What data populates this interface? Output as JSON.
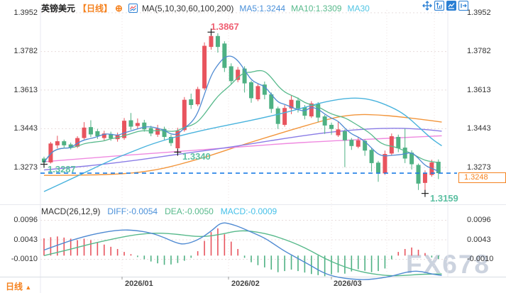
{
  "header": {
    "symbol": "英镑美元",
    "period": "【日线】",
    "add_icon": "⊕",
    "ma_settings": "MA(5,10,30,60,100,200)",
    "ma5": "MA5:1.3244",
    "ma10": "MA10:1.3309",
    "ma30": "MA30"
  },
  "toolbar": {
    "icons": [
      "crosshair-move",
      "axis-scale",
      "area-chart-active",
      "collapse-right"
    ]
  },
  "axes": {
    "price_labels": [
      "1.3952",
      "1.3782",
      "1.3613",
      "1.3443",
      "1.3273"
    ],
    "macd_labels": [
      "0.0096",
      "0.0043",
      "-0.0010"
    ],
    "date_labels": [
      "2026/01",
      "2026/02",
      "2026/03"
    ],
    "current_price": "1.3248"
  },
  "annotations": {
    "start_low": "1.3287",
    "swing_low": "1.3340",
    "peak": "1.3867",
    "final_low": "1.3159"
  },
  "macd_header": {
    "title": "MACD(26,12,9)",
    "diff": "DIFF:-0.0054",
    "dea": "DEA:-0.0050",
    "macd": "MACD:-0.0009"
  },
  "footer": {
    "period": "日线",
    "arrow": "▲"
  },
  "watermark": "FX678",
  "colors": {
    "up": "#e8545e",
    "down": "#4eb183",
    "ma5": "#4f8ad2",
    "ma10": "#57b98b",
    "ma30": "#49b3dd",
    "ma60": "#8a7ce6",
    "ma100": "#ef8ae0",
    "ma200": "#f2953b",
    "accent_orange": "#f5821f",
    "current_line": "#1d7de5",
    "annotation_teal": "#5cc0a2",
    "annotation_red": "#ef5f72",
    "hist_up": "#e8545e",
    "hist_down": "#4eb183",
    "grid": "#e7dcdc",
    "watermark": "#ccd3df"
  },
  "chart_data": {
    "type": "candlestick",
    "title": "英镑美元 日线 (GBP/USD Daily) with MA(5,10,30,60,100,200) and MACD(26,12,9)",
    "price_ticks": [
      1.3952,
      1.3782,
      1.3613,
      1.3443,
      1.3273
    ],
    "macd_ticks": [
      0.0096,
      0.0043,
      -0.001
    ],
    "date_ticks": [
      "2026/01",
      "2026/02",
      "2026/03"
    ],
    "current_price": 1.3248,
    "legend_values": {
      "ma5": 1.3244,
      "ma10": 1.3309
    },
    "macd_values": {
      "diff": -0.0054,
      "dea": -0.005,
      "macd": -0.0009
    },
    "candles": [
      [
        1.3312,
        1.3295,
        1.3287,
        1.332
      ],
      [
        1.3295,
        1.3378,
        1.329,
        1.3385
      ],
      [
        1.337,
        1.3388,
        1.3356,
        1.3412
      ],
      [
        1.3388,
        1.337,
        1.336,
        1.3395
      ],
      [
        1.3374,
        1.3362,
        1.3352,
        1.3382
      ],
      [
        1.3364,
        1.3402,
        1.3358,
        1.341
      ],
      [
        1.3402,
        1.3448,
        1.3396,
        1.3472
      ],
      [
        1.345,
        1.3418,
        1.3406,
        1.348
      ],
      [
        1.3432,
        1.341,
        1.3398,
        1.3442
      ],
      [
        1.3402,
        1.3422,
        1.3392,
        1.3434
      ],
      [
        1.342,
        1.34,
        1.339,
        1.343
      ],
      [
        1.3397,
        1.3414,
        1.3386,
        1.3426
      ],
      [
        1.3402,
        1.3478,
        1.3394,
        1.349
      ],
      [
        1.348,
        1.3452,
        1.3438,
        1.3512
      ],
      [
        1.3455,
        1.3468,
        1.3442,
        1.3488
      ],
      [
        1.347,
        1.344,
        1.343,
        1.3482
      ],
      [
        1.3446,
        1.3422,
        1.341,
        1.3456
      ],
      [
        1.3417,
        1.3444,
        1.3407,
        1.346
      ],
      [
        1.3442,
        1.3407,
        1.3394,
        1.3452
      ],
      [
        1.3407,
        1.338,
        1.3367,
        1.3417
      ],
      [
        1.3357,
        1.3434,
        1.334,
        1.3447
      ],
      [
        1.3437,
        1.357,
        1.343,
        1.3582
      ],
      [
        1.3572,
        1.3547,
        1.353,
        1.3597
      ],
      [
        1.355,
        1.3617,
        1.3542,
        1.3627
      ],
      [
        1.362,
        1.3807,
        1.3612,
        1.3822
      ],
      [
        1.3802,
        1.385,
        1.379,
        1.3867
      ],
      [
        1.385,
        1.3802,
        1.3777,
        1.3862
      ],
      [
        1.3817,
        1.371,
        1.3692,
        1.3827
      ],
      [
        1.3717,
        1.3652,
        1.3637,
        1.373
      ],
      [
        1.3657,
        1.3702,
        1.3647,
        1.3714
      ],
      [
        1.3707,
        1.3642,
        1.3602,
        1.3717
      ],
      [
        1.3647,
        1.3577,
        1.3557,
        1.3654
      ],
      [
        1.3572,
        1.363,
        1.3564,
        1.3642
      ],
      [
        1.3637,
        1.3592,
        1.3572,
        1.365
      ],
      [
        1.3594,
        1.353,
        1.3512,
        1.3602
      ],
      [
        1.3532,
        1.3464,
        1.3442,
        1.354
      ],
      [
        1.346,
        1.3534,
        1.3452,
        1.3547
      ],
      [
        1.3532,
        1.357,
        1.3507,
        1.359
      ],
      [
        1.3567,
        1.3532,
        1.3514,
        1.358
      ],
      [
        1.3537,
        1.35,
        1.3484,
        1.3547
      ],
      [
        1.3497,
        1.3554,
        1.349,
        1.3564
      ],
      [
        1.3552,
        1.3492,
        1.3472,
        1.356
      ],
      [
        1.3497,
        1.3457,
        1.342,
        1.3504
      ],
      [
        1.346,
        1.3442,
        1.3417,
        1.347
      ],
      [
        1.3414,
        1.344,
        1.3407,
        1.3472
      ],
      [
        1.3432,
        1.3392,
        1.3274,
        1.344
      ],
      [
        1.3394,
        1.3367,
        1.335,
        1.3402
      ],
      [
        1.3364,
        1.3392,
        1.3357,
        1.3407
      ],
      [
        1.339,
        1.3347,
        1.3324,
        1.3397
      ],
      [
        1.335,
        1.3292,
        1.3254,
        1.3357
      ],
      [
        1.3294,
        1.325,
        1.321,
        1.3302
      ],
      [
        1.3247,
        1.3332,
        1.324,
        1.3347
      ],
      [
        1.3334,
        1.341,
        1.3327,
        1.3422
      ],
      [
        1.3407,
        1.3357,
        1.334,
        1.3417
      ],
      [
        1.336,
        1.3312,
        1.3292,
        1.3444
      ],
      [
        1.3338,
        1.3287,
        1.3264,
        1.3348
      ],
      [
        1.3284,
        1.3202,
        1.3174,
        1.329
      ],
      [
        1.3205,
        1.3248,
        1.3159,
        1.326
      ],
      [
        1.324,
        1.3295,
        1.3232,
        1.3307
      ],
      [
        1.3298,
        1.3248,
        1.3222,
        1.3308
      ]
    ],
    "ma_overlays": {
      "ma30": [
        [
          0,
          1.3167
        ],
        [
          5,
          1.3235
        ],
        [
          10,
          1.3305
        ],
        [
          13,
          1.334
        ],
        [
          16,
          1.3375
        ],
        [
          20,
          1.341
        ],
        [
          24,
          1.3438
        ],
        [
          28,
          1.3462
        ],
        [
          33,
          1.3492
        ],
        [
          38,
          1.3528
        ],
        [
          42,
          1.3562
        ],
        [
          46,
          1.358
        ],
        [
          49,
          1.3572
        ],
        [
          52,
          1.3538
        ],
        [
          54,
          1.3505
        ],
        [
          56,
          1.3452
        ],
        [
          58,
          1.3398
        ],
        [
          59.5,
          1.3368
        ]
      ],
      "ma60": [
        [
          0,
          1.3262
        ],
        [
          7,
          1.328
        ],
        [
          14,
          1.3305
        ],
        [
          21,
          1.3335
        ],
        [
          28,
          1.3362
        ],
        [
          35,
          1.3396
        ],
        [
          42,
          1.3426
        ],
        [
          48,
          1.3442
        ],
        [
          53,
          1.3446
        ],
        [
          57,
          1.344
        ],
        [
          59.5,
          1.3432
        ]
      ],
      "ma100": [
        [
          0,
          1.3298
        ],
        [
          7,
          1.3315
        ],
        [
          14,
          1.333
        ],
        [
          21,
          1.3345
        ],
        [
          28,
          1.336
        ],
        [
          35,
          1.3376
        ],
        [
          42,
          1.3388
        ],
        [
          48,
          1.3396
        ],
        [
          53,
          1.3403
        ],
        [
          59.5,
          1.3412
        ]
      ],
      "ma200": [
        [
          0,
          1.3238
        ],
        [
          6,
          1.3239
        ],
        [
          12,
          1.3244
        ],
        [
          17,
          1.3262
        ],
        [
          21,
          1.3292
        ],
        [
          25,
          1.3326
        ],
        [
          29,
          1.3366
        ],
        [
          33,
          1.3402
        ],
        [
          37,
          1.3438
        ],
        [
          41,
          1.3472
        ],
        [
          44,
          1.3496
        ],
        [
          47,
          1.3506
        ],
        [
          50,
          1.3504
        ],
        [
          53,
          1.3496
        ],
        [
          56,
          1.3486
        ],
        [
          59.5,
          1.3472
        ]
      ]
    },
    "macd": {
      "histogram": [
        0.0047,
        0.005,
        0.0052,
        0.0049,
        0.0046,
        0.0042,
        0.0046,
        0.0042,
        0.0036,
        0.003,
        0.0024,
        0.0018,
        0.001,
        0.0004,
        -0.0004,
        -0.001,
        -0.0016,
        -0.0021,
        -0.0025,
        -0.0024,
        -0.002,
        -0.0014,
        -0.0006,
        0.0012,
        0.004,
        0.0064,
        0.0074,
        0.0058,
        0.0038,
        0.0018,
        -0.0006,
        -0.0018,
        -0.0026,
        -0.0032,
        -0.0038,
        -0.0045,
        -0.0042,
        -0.0038,
        -0.0042,
        -0.0046,
        -0.005,
        -0.0053,
        -0.0056,
        -0.0051,
        -0.0046,
        -0.0049,
        -0.0043,
        -0.0037,
        -0.0041,
        -0.0045,
        -0.0042,
        -0.0035,
        -0.001,
        0.001,
        0.0018,
        0.0022,
        0.0016,
        0.0007,
        -0.0005,
        -0.0009
      ],
      "diff": [
        [
          0,
          0.0015
        ],
        [
          3,
          0.0035
        ],
        [
          6,
          0.0052
        ],
        [
          9,
          0.0064
        ],
        [
          11.5,
          0.007
        ],
        [
          13.5,
          0.0069
        ],
        [
          16,
          0.0062
        ],
        [
          18,
          0.0049
        ],
        [
          19.7,
          0.0035
        ],
        [
          21,
          0.003
        ],
        [
          23,
          0.0042
        ],
        [
          25,
          0.0066
        ],
        [
          26.5,
          0.0091
        ],
        [
          28,
          0.0086
        ],
        [
          29.5,
          0.0076
        ],
        [
          31,
          0.0064
        ],
        [
          33,
          0.0048
        ],
        [
          34.5,
          0.003
        ],
        [
          36,
          0.0012
        ],
        [
          38,
          -0.0008
        ],
        [
          40,
          -0.0028
        ],
        [
          41.5,
          -0.0044
        ],
        [
          43,
          -0.0055
        ],
        [
          45,
          -0.0062
        ],
        [
          47,
          -0.0065
        ],
        [
          48.5,
          -0.0065
        ],
        [
          50,
          -0.0062
        ],
        [
          52,
          -0.0056
        ],
        [
          53.5,
          -0.0048
        ],
        [
          55,
          -0.0042
        ],
        [
          56.5,
          -0.0043
        ],
        [
          58,
          -0.005
        ],
        [
          59.5,
          -0.0054
        ]
      ],
      "dea": [
        [
          0,
          0.0
        ],
        [
          3.5,
          0.0015
        ],
        [
          7,
          0.0032
        ],
        [
          11,
          0.0048
        ],
        [
          14,
          0.0058
        ],
        [
          17,
          0.0062
        ],
        [
          20,
          0.0058
        ],
        [
          23.5,
          0.005
        ],
        [
          26.5,
          0.0058
        ],
        [
          28.5,
          0.0066
        ],
        [
          30,
          0.0068
        ],
        [
          32,
          0.0064
        ],
        [
          34,
          0.0056
        ],
        [
          36,
          0.0044
        ],
        [
          38,
          0.003
        ],
        [
          40,
          0.0012
        ],
        [
          42,
          -0.0008
        ],
        [
          44,
          -0.0024
        ],
        [
          46,
          -0.0037
        ],
        [
          48,
          -0.0046
        ],
        [
          50,
          -0.0052
        ],
        [
          52,
          -0.0055
        ],
        [
          54,
          -0.0054
        ],
        [
          56,
          -0.0051
        ],
        [
          58,
          -0.005
        ],
        [
          59.5,
          -0.005
        ]
      ]
    },
    "markers": [
      {
        "index": 0,
        "price": 1.3287,
        "label": "1.3287"
      },
      {
        "index": 20,
        "price": 1.334,
        "label": "1.3340"
      },
      {
        "index": 25,
        "price": 1.3867,
        "label": "1.3867"
      },
      {
        "index": 57,
        "price": 1.3159,
        "label": "1.3159"
      }
    ]
  }
}
